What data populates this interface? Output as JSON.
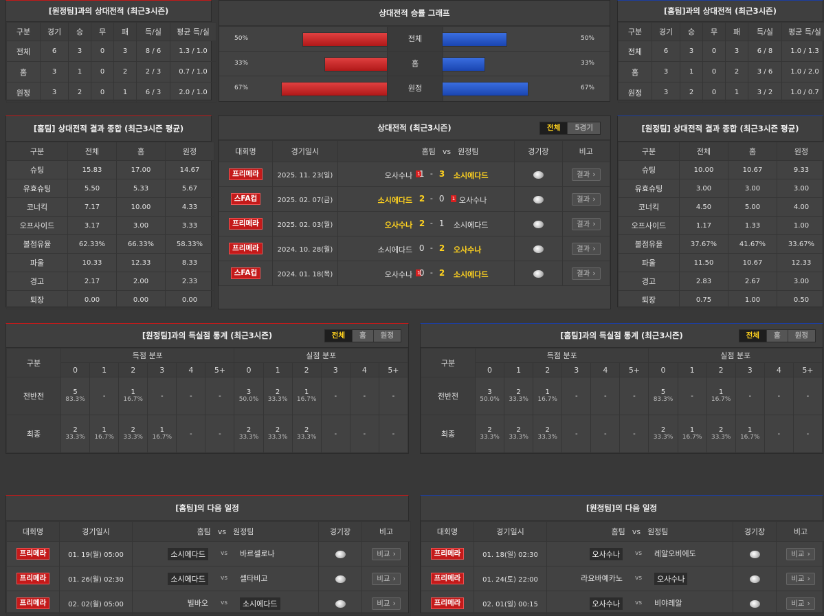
{
  "h2h_home": {
    "title": "[원정팀]과의 상대전적 (최근3시즌)",
    "headers": [
      "구분",
      "경기",
      "승",
      "무",
      "패",
      "득/실",
      "평균 득/실"
    ],
    "rows": [
      [
        "전체",
        "6",
        "3",
        "0",
        "3",
        "8 / 6",
        "1.3 / 1.0"
      ],
      [
        "홈",
        "3",
        "1",
        "0",
        "2",
        "2 / 3",
        "0.7 / 1.0"
      ],
      [
        "원정",
        "3",
        "2",
        "0",
        "1",
        "6 / 3",
        "2.0 / 1.0"
      ]
    ]
  },
  "h2h_away": {
    "title": "[홈팀]과의 상대전적 (최근3시즌)",
    "headers": [
      "구분",
      "경기",
      "승",
      "무",
      "패",
      "득/실",
      "평균 득/실"
    ],
    "rows": [
      [
        "전체",
        "6",
        "3",
        "0",
        "3",
        "6 / 8",
        "1.0 / 1.3"
      ],
      [
        "홈",
        "3",
        "1",
        "0",
        "2",
        "3 / 6",
        "1.0 / 2.0"
      ],
      [
        "원정",
        "3",
        "2",
        "0",
        "1",
        "3 / 2",
        "1.0 / 0.7"
      ]
    ]
  },
  "graph": {
    "title": "상대전적 승률 그래프",
    "rows": [
      {
        "label": "전체",
        "left": "50%",
        "right": "50%",
        "left_val": 50,
        "right_val": 50
      },
      {
        "label": "홈",
        "left": "33%",
        "right": "33%",
        "left_val": 33,
        "right_val": 33
      },
      {
        "label": "원정",
        "left": "67%",
        "right": "67%",
        "left_val": 67,
        "right_val": 67
      }
    ]
  },
  "home_summary": {
    "title": "[홈팀] 상대전적 결과 종합 (최근3시즌 평균)",
    "headers": [
      "구분",
      "전체",
      "홈",
      "원정"
    ],
    "rows": [
      [
        "슈팅",
        "15.83",
        "17.00",
        "14.67"
      ],
      [
        "유효슈팅",
        "5.50",
        "5.33",
        "5.67"
      ],
      [
        "코너킥",
        "7.17",
        "10.00",
        "4.33"
      ],
      [
        "오프사이드",
        "3.17",
        "3.00",
        "3.33"
      ],
      [
        "볼점유율",
        "62.33%",
        "66.33%",
        "58.33%"
      ],
      [
        "파울",
        "10.33",
        "12.33",
        "8.33"
      ],
      [
        "경고",
        "2.17",
        "2.00",
        "2.33"
      ],
      [
        "퇴장",
        "0.00",
        "0.00",
        "0.00"
      ]
    ]
  },
  "away_summary": {
    "title": "[원정팀] 상대전적 결과 종합 (최근3시즌 평균)",
    "headers": [
      "구분",
      "전체",
      "홈",
      "원정"
    ],
    "rows": [
      [
        "슈팅",
        "10.00",
        "10.67",
        "9.33"
      ],
      [
        "유효슈팅",
        "3.00",
        "3.00",
        "3.00"
      ],
      [
        "코너킥",
        "4.50",
        "5.00",
        "4.00"
      ],
      [
        "오프사이드",
        "1.17",
        "1.33",
        "1.00"
      ],
      [
        "볼점유율",
        "37.67%",
        "41.67%",
        "33.67%"
      ],
      [
        "파울",
        "11.50",
        "10.67",
        "12.33"
      ],
      [
        "경고",
        "2.83",
        "2.67",
        "3.00"
      ],
      [
        "퇴장",
        "0.75",
        "1.00",
        "0.50"
      ]
    ]
  },
  "matches": {
    "title": "상대전적 (최근3시즌)",
    "tabs": [
      "전체",
      "5경기"
    ],
    "headers": {
      "league": "대회명",
      "date": "경기일시",
      "home": "홈팀",
      "vs": "vs",
      "away": "원정팀",
      "venue": "경기장",
      "note": "비고"
    },
    "rows": [
      {
        "league": "프리메라",
        "date": "2025. 11. 23(일)",
        "home": "오사수나",
        "hcard": "1",
        "hs": "1",
        "as": "3",
        "away": "소시에다드",
        "acard": "",
        "win": "away",
        "btn": "결과"
      },
      {
        "league": "스FA컵",
        "date": "2025. 02. 07(금)",
        "home": "소시에다드",
        "hcard": "",
        "hs": "2",
        "as": "0",
        "away": "오사수나",
        "acard": "1",
        "win": "home",
        "btn": "결과"
      },
      {
        "league": "프리메라",
        "date": "2025. 02. 03(월)",
        "home": "오사수나",
        "hcard": "",
        "hs": "2",
        "as": "1",
        "away": "소시에다드",
        "acard": "",
        "win": "home",
        "btn": "결과"
      },
      {
        "league": "프리메라",
        "date": "2024. 10. 28(월)",
        "home": "소시에다드",
        "hcard": "",
        "hs": "0",
        "as": "2",
        "away": "오사수나",
        "acard": "",
        "win": "away",
        "btn": "결과"
      },
      {
        "league": "스FA컵",
        "date": "2024. 01. 18(목)",
        "home": "오사수나",
        "hcard": "1",
        "hs": "0",
        "as": "2",
        "away": "소시에다드",
        "acard": "",
        "win": "away",
        "btn": "결과"
      }
    ]
  },
  "dist_left": {
    "title": "[원정팀]과의 득실점 통계 (최근3시즌)",
    "tabs": [
      "전체",
      "홈",
      "원정"
    ],
    "col_label": "구분",
    "scored_label": "득점 분포",
    "conceded_label": "실점 분포",
    "goals": [
      "0",
      "1",
      "2",
      "3",
      "4",
      "5+"
    ],
    "rows": [
      {
        "label": "전반전",
        "cells": [
          [
            "5",
            "83.3%"
          ],
          [
            "-",
            ""
          ],
          [
            "1",
            "16.7%"
          ],
          [
            "-",
            ""
          ],
          [
            "-",
            ""
          ],
          [
            "-",
            ""
          ],
          [
            "3",
            "50.0%"
          ],
          [
            "2",
            "33.3%"
          ],
          [
            "1",
            "16.7%"
          ],
          [
            "-",
            ""
          ],
          [
            "-",
            ""
          ],
          [
            "-",
            ""
          ]
        ]
      },
      {
        "label": "최종",
        "cells": [
          [
            "2",
            "33.3%"
          ],
          [
            "1",
            "16.7%"
          ],
          [
            "2",
            "33.3%"
          ],
          [
            "1",
            "16.7%"
          ],
          [
            "-",
            ""
          ],
          [
            "-",
            ""
          ],
          [
            "2",
            "33.3%"
          ],
          [
            "2",
            "33.3%"
          ],
          [
            "2",
            "33.3%"
          ],
          [
            "-",
            ""
          ],
          [
            "-",
            ""
          ],
          [
            "-",
            ""
          ]
        ]
      }
    ]
  },
  "dist_right": {
    "title": "[홈팀]과의 득실점 통계 (최근3시즌)",
    "tabs": [
      "전체",
      "홈",
      "원정"
    ],
    "col_label": "구분",
    "scored_label": "득점 분포",
    "conceded_label": "실점 분포",
    "goals": [
      "0",
      "1",
      "2",
      "3",
      "4",
      "5+"
    ],
    "rows": [
      {
        "label": "전반전",
        "cells": [
          [
            "3",
            "50.0%"
          ],
          [
            "2",
            "33.3%"
          ],
          [
            "1",
            "16.7%"
          ],
          [
            "-",
            ""
          ],
          [
            "-",
            ""
          ],
          [
            "-",
            ""
          ],
          [
            "5",
            "83.3%"
          ],
          [
            "-",
            ""
          ],
          [
            "1",
            "16.7%"
          ],
          [
            "-",
            ""
          ],
          [
            "-",
            ""
          ],
          [
            "-",
            ""
          ]
        ]
      },
      {
        "label": "최종",
        "cells": [
          [
            "2",
            "33.3%"
          ],
          [
            "2",
            "33.3%"
          ],
          [
            "2",
            "33.3%"
          ],
          [
            "-",
            ""
          ],
          [
            "-",
            ""
          ],
          [
            "-",
            ""
          ],
          [
            "2",
            "33.3%"
          ],
          [
            "1",
            "16.7%"
          ],
          [
            "2",
            "33.3%"
          ],
          [
            "1",
            "16.7%"
          ],
          [
            "-",
            ""
          ],
          [
            "-",
            ""
          ]
        ]
      }
    ]
  },
  "next_home": {
    "title": "[홈팀]의 다음 일정",
    "headers": {
      "league": "대회명",
      "date": "경기일시",
      "home": "홈팀",
      "vs": "vs",
      "away": "원정팀",
      "venue": "경기장",
      "note": "비고"
    },
    "rows": [
      {
        "league": "프리메라",
        "date": "01. 19(월) 05:00",
        "home": "소시에다드",
        "hbox": true,
        "vs": "vs",
        "away": "바르셀로나",
        "abox": false,
        "btn": "비교"
      },
      {
        "league": "프리메라",
        "date": "01. 26(월) 02:30",
        "home": "소시에다드",
        "hbox": true,
        "vs": "vs",
        "away": "셀타비고",
        "abox": false,
        "btn": "비교"
      },
      {
        "league": "프리메라",
        "date": "02. 02(월) 05:00",
        "home": "빌바오",
        "hbox": false,
        "vs": "vs",
        "away": "소시에다드",
        "abox": true,
        "btn": "비교"
      }
    ]
  },
  "next_away": {
    "title": "[원정팀]의 다음 일정",
    "headers": {
      "league": "대회명",
      "date": "경기일시",
      "home": "홈팀",
      "vs": "vs",
      "away": "원정팀",
      "venue": "경기장",
      "note": "비고"
    },
    "rows": [
      {
        "league": "프리메라",
        "date": "01. 18(일) 02:30",
        "home": "오사수나",
        "hbox": true,
        "vs": "vs",
        "away": "레알오비에도",
        "abox": false,
        "btn": "비교"
      },
      {
        "league": "프리메라",
        "date": "01. 24(토) 22:00",
        "home": "라요바예카노",
        "hbox": false,
        "vs": "vs",
        "away": "오사수나",
        "abox": true,
        "btn": "비교"
      },
      {
        "league": "프리메라",
        "date": "02. 01(일) 00:15",
        "home": "오사수나",
        "hbox": true,
        "vs": "vs",
        "away": "비야레알",
        "abox": false,
        "btn": "비교"
      }
    ]
  }
}
